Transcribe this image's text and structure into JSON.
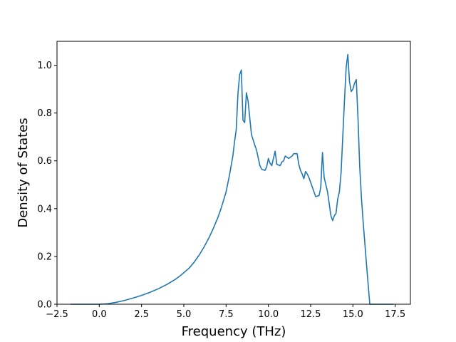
{
  "chart_data": {
    "type": "line",
    "title": "",
    "xlabel": "Frequency (THz)",
    "ylabel": "Density of States",
    "xlim": [
      -2.5,
      18.4
    ],
    "ylim": [
      0.0,
      1.1
    ],
    "xticks": [
      "-2.5",
      "0.0",
      "2.5",
      "5.0",
      "7.5",
      "10.0",
      "12.5",
      "15.0",
      "17.5"
    ],
    "yticks": [
      "0.0",
      "0.2",
      "0.4",
      "0.6",
      "0.8",
      "1.0"
    ],
    "grid": false,
    "legend": "none",
    "series": [
      {
        "color": "#1f77b4",
        "x": [
          -1.7,
          -1.0,
          0.0,
          0.5,
          1.0,
          1.5,
          2.0,
          2.5,
          3.0,
          3.5,
          4.0,
          4.5,
          4.8,
          5.0,
          5.3,
          5.6,
          5.9,
          6.2,
          6.5,
          6.7,
          7.0,
          7.2,
          7.5,
          7.7,
          7.9,
          8.0,
          8.1,
          8.2,
          8.3,
          8.4,
          8.5,
          8.6,
          8.7,
          8.8,
          9.0,
          9.2,
          9.3,
          9.5,
          9.6,
          9.8,
          9.9,
          10.0,
          10.1,
          10.2,
          10.4,
          10.5,
          10.7,
          10.8,
          10.9,
          11.0,
          11.2,
          11.4,
          11.5,
          11.7,
          11.8,
          11.9,
          12.0,
          12.1,
          12.2,
          12.3,
          12.4,
          12.6,
          12.8,
          13.0,
          13.1,
          13.2,
          13.3,
          13.4,
          13.5,
          13.6,
          13.7,
          13.8,
          13.9,
          14.0,
          14.1,
          14.2,
          14.3,
          14.4,
          14.5,
          14.6,
          14.7,
          14.8,
          14.9,
          15.0,
          15.1,
          15.2,
          15.3,
          15.4,
          15.5,
          15.6,
          15.7,
          15.8,
          16.0,
          17.4
        ],
        "y": [
          0.0,
          0.0,
          0.0,
          0.002,
          0.008,
          0.016,
          0.026,
          0.037,
          0.05,
          0.065,
          0.083,
          0.104,
          0.12,
          0.132,
          0.15,
          0.175,
          0.205,
          0.24,
          0.28,
          0.31,
          0.36,
          0.4,
          0.47,
          0.54,
          0.62,
          0.68,
          0.73,
          0.88,
          0.96,
          0.98,
          0.77,
          0.76,
          0.885,
          0.85,
          0.71,
          0.665,
          0.645,
          0.58,
          0.565,
          0.56,
          0.575,
          0.61,
          0.59,
          0.58,
          0.64,
          0.585,
          0.58,
          0.595,
          0.6,
          0.62,
          0.61,
          0.62,
          0.63,
          0.63,
          0.585,
          0.56,
          0.545,
          0.525,
          0.555,
          0.545,
          0.53,
          0.49,
          0.45,
          0.455,
          0.49,
          0.635,
          0.53,
          0.5,
          0.47,
          0.42,
          0.37,
          0.35,
          0.37,
          0.38,
          0.44,
          0.47,
          0.55,
          0.7,
          0.85,
          0.99,
          1.045,
          0.93,
          0.89,
          0.9,
          0.925,
          0.94,
          0.78,
          0.58,
          0.45,
          0.35,
          0.26,
          0.17,
          0.0,
          0.0
        ]
      }
    ]
  }
}
